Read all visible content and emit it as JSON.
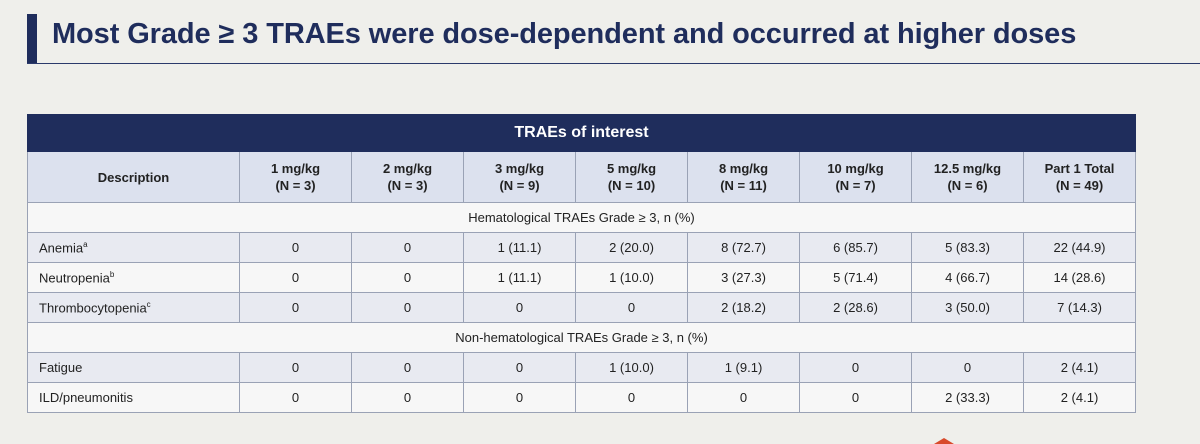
{
  "title": "Most Grade ≥ 3 TRAEs were dose-dependent and occurred at higher doses",
  "table": {
    "banner": "TRAEs of interest",
    "headers": [
      {
        "line1": "Description",
        "line2": ""
      },
      {
        "line1": "1 mg/kg",
        "line2": "(N = 3)"
      },
      {
        "line1": "2 mg/kg",
        "line2": "(N = 3)"
      },
      {
        "line1": "3 mg/kg",
        "line2": "(N = 9)"
      },
      {
        "line1": "5 mg/kg",
        "line2": "(N = 10)"
      },
      {
        "line1": "8 mg/kg",
        "line2": "(N = 11)"
      },
      {
        "line1": "10 mg/kg",
        "line2": "(N = 7)"
      },
      {
        "line1": "12.5 mg/kg",
        "line2": "(N = 6)"
      },
      {
        "line1": "Part 1 Total",
        "line2": "(N = 49)"
      }
    ],
    "sections": [
      {
        "label": "Hematological TRAEs Grade ≥ 3, n (%)",
        "rows": [
          {
            "name": "Anemia",
            "sup": "a",
            "values": [
              "0",
              "0",
              "1 (11.1)",
              "2 (20.0)",
              "8 (72.7)",
              "6 (85.7)",
              "5 (83.3)",
              "22 (44.9)"
            ]
          },
          {
            "name": "Neutropenia",
            "sup": "b",
            "values": [
              "0",
              "0",
              "1 (11.1)",
              "1 (10.0)",
              "3 (27.3)",
              "5 (71.4)",
              "4 (66.7)",
              "14 (28.6)"
            ]
          },
          {
            "name": "Thrombocytopenia",
            "sup": "c",
            "values": [
              "0",
              "0",
              "0",
              "0",
              "2 (18.2)",
              "2 (28.6)",
              "3 (50.0)",
              "7 (14.3)"
            ]
          }
        ]
      },
      {
        "label": "Non-hematological TRAEs Grade ≥ 3, n (%)",
        "rows": [
          {
            "name": "Fatigue",
            "sup": "",
            "values": [
              "0",
              "0",
              "0",
              "1 (10.0)",
              "1 (9.1)",
              "0",
              "0",
              "2 (4.1)"
            ]
          },
          {
            "name": "ILD/pneumonitis",
            "sup": "",
            "values": [
              "0",
              "0",
              "0",
              "0",
              "0",
              "0",
              "2 (33.3)",
              "2 (4.1)"
            ]
          }
        ]
      }
    ]
  },
  "colors": {
    "navy": "#1f2d5c",
    "header_bg": "#dce1ee",
    "row_alt": "#e8eaf1",
    "accent_mark": "#d84a2b"
  }
}
